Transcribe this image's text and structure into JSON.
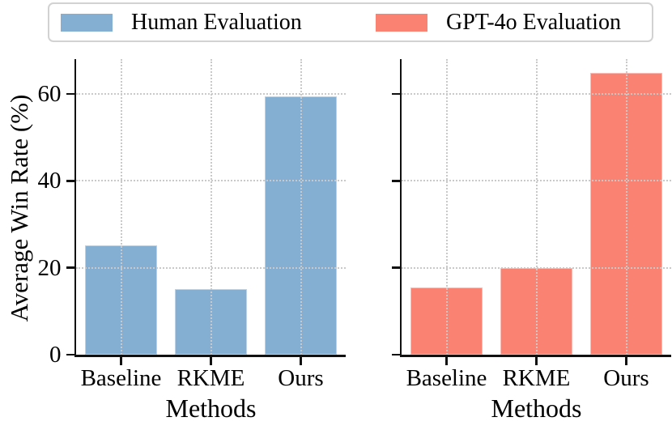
{
  "figure": {
    "ylabel": "Average Win Rate (%)",
    "legend": {
      "items": [
        {
          "label": "Human Evaluation",
          "color": "#85AED3"
        },
        {
          "label": "GPT-4o Evaluation",
          "color": "#FA8273"
        }
      ]
    }
  },
  "chart_data": [
    {
      "type": "bar",
      "panel": "left",
      "series_name": "Human Evaluation",
      "color": "#85AED3",
      "categories": [
        "Baseline",
        "RKME",
        "Ours"
      ],
      "values": [
        25.2,
        15.0,
        59.5
      ],
      "xlabel": "Methods",
      "ylabel": "Average Win Rate (%)",
      "ylim": [
        0,
        68
      ],
      "yticks": [
        0,
        20,
        40,
        60
      ],
      "ytick_labels": [
        "0",
        "20",
        "40",
        "60"
      ],
      "ytick_labels_visible": true,
      "grid": "dotted",
      "legend_position": "top"
    },
    {
      "type": "bar",
      "panel": "right",
      "series_name": "GPT-4o Evaluation",
      "color": "#FA8273",
      "categories": [
        "Baseline",
        "RKME",
        "Ours"
      ],
      "values": [
        15.4,
        19.9,
        64.8
      ],
      "xlabel": "Methods",
      "ylabel": "",
      "ylim": [
        0,
        68
      ],
      "yticks": [
        0,
        20,
        40,
        60
      ],
      "ytick_labels": [
        "0",
        "20",
        "40",
        "60"
      ],
      "ytick_labels_visible": false,
      "grid": "dotted",
      "legend_position": "top"
    }
  ]
}
